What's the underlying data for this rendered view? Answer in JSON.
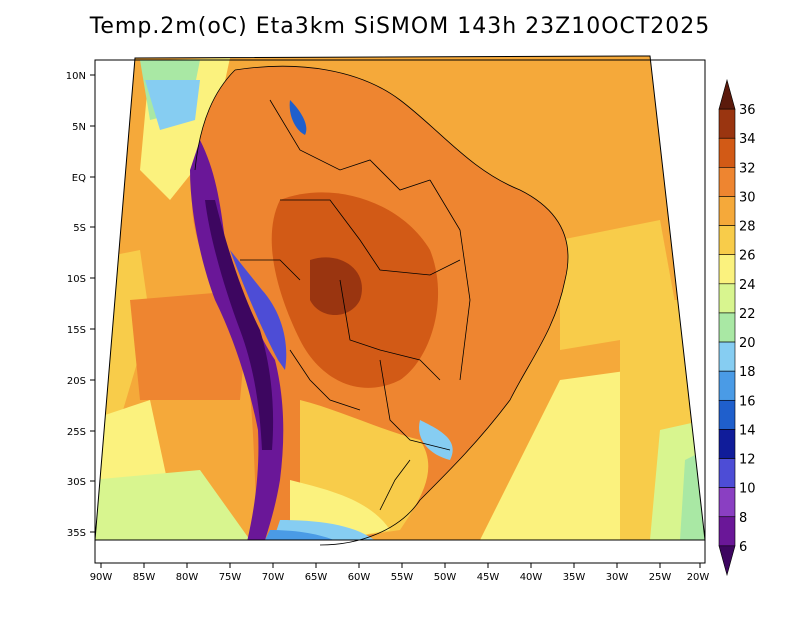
{
  "title": "Temp.2m(oC) Eta3km SiSMOM 143h 23Z10OCT2025",
  "map": {
    "variable": "Temp.2m",
    "unit": "oC",
    "model": "Eta3km",
    "forecast_hour": "143h",
    "valid_time": "23Z10OCT2025",
    "lat_labels": [
      "10N",
      "5N",
      "EQ",
      "5S",
      "10S",
      "15S",
      "20S",
      "25S",
      "30S",
      "35S"
    ],
    "lon_labels": [
      "90W",
      "85W",
      "80W",
      "75W",
      "70W",
      "65W",
      "60W",
      "55W",
      "50W",
      "45W",
      "40W",
      "35W",
      "30W",
      "25W",
      "20W"
    ]
  },
  "legend": {
    "levels": [
      "36",
      "34",
      "32",
      "30",
      "28",
      "26",
      "24",
      "22",
      "20",
      "18",
      "16",
      "14",
      "12",
      "10",
      "8",
      "6"
    ],
    "colors": [
      "#5b1a0c",
      "#9a3510",
      "#d25a16",
      "#ee8530",
      "#f5a93a",
      "#f8cc4a",
      "#fbf27e",
      "#d8f58f",
      "#a9e8a4",
      "#86cdf2",
      "#4a9be6",
      "#1f5fcc",
      "#101c9a",
      "#4d4dd6",
      "#8a3fc2",
      "#6a1798",
      "#3d0660"
    ]
  }
}
